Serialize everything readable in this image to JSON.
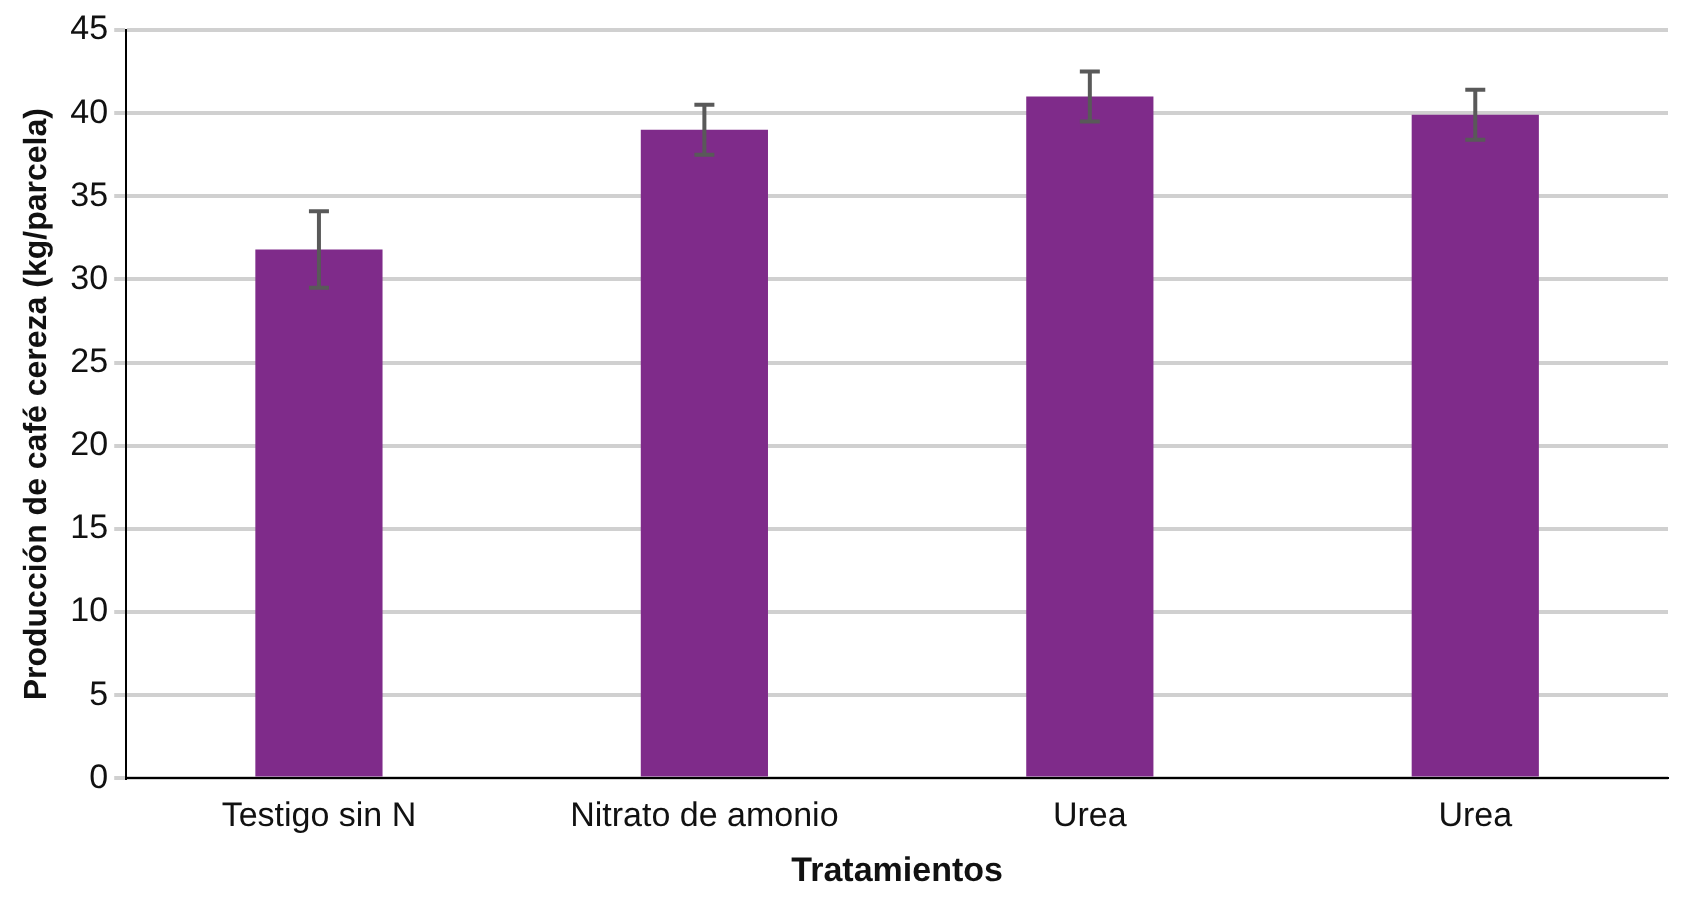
{
  "chart_data": {
    "type": "bar",
    "xlabel": "Tratamientos",
    "ylabel": "Producción de café cereza (kg/parcela)",
    "categories": [
      "Testigo sin N",
      "Nitrato de amonio",
      "Urea",
      "Urea"
    ],
    "values": [
      31.8,
      39,
      41,
      39.9
    ],
    "errors": [
      2.3,
      1.5,
      1.5,
      1.5
    ],
    "color": "#7f2b8a",
    "ylim": [
      0,
      45
    ],
    "yticks": [
      0,
      5,
      10,
      15,
      20,
      25,
      30,
      35,
      40,
      45
    ],
    "grid": "y",
    "legend": false
  }
}
